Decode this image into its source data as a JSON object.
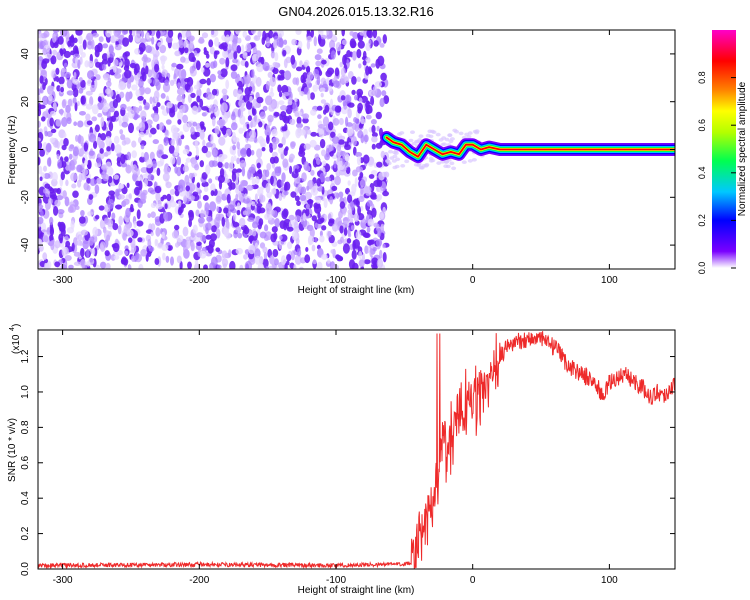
{
  "title": "GN04.2026.015.13.32.R16",
  "colors": {
    "colorbar": [
      "#ffffff",
      "#7a00ff",
      "#0000ff",
      "#00c8ff",
      "#00ff50",
      "#b4ff00",
      "#ffff00",
      "#ff8000",
      "#ff0000",
      "#ff00c8"
    ],
    "snr_line": "#ee2a2a",
    "spectrogram_noise": "#6a1ff0",
    "spectrogram_ridge": "#ff0000"
  },
  "chart_data": [
    {
      "type": "heatmap",
      "name": "spectrogram",
      "xlabel": "Height of straight line (km)",
      "ylabel": "Frequency (Hz)",
      "xlim": [
        -318,
        148
      ],
      "ylim": [
        -50,
        50
      ],
      "xticks": [
        -300,
        -200,
        -100,
        0,
        100
      ],
      "yticks": [
        -40,
        -20,
        0,
        20,
        40
      ],
      "noise_region_x": [
        -318,
        -63
      ],
      "ridge": {
        "x": [
          -63,
          -58,
          -52,
          -46,
          -40,
          -34,
          -28,
          -22,
          -16,
          -10,
          -5,
          0,
          6,
          12,
          20,
          30,
          148
        ],
        "y": [
          5,
          3,
          2,
          -1,
          -3,
          2,
          0,
          -2,
          -1,
          -2,
          2,
          2,
          0,
          1,
          0,
          0,
          0
        ]
      },
      "colorbar": {
        "label": "Normalized spectral amplitude",
        "range": [
          0,
          1
        ],
        "ticks": [
          "0.0",
          "0.2",
          "0.4",
          "0.6",
          "0.8"
        ]
      }
    },
    {
      "type": "line",
      "name": "snr",
      "xlabel": "Height of straight line (km)",
      "ylabel": "SNR (10 * v/v)",
      "yscale_label": "(x10",
      "yscale_exp": "4",
      "xlim": [
        -318,
        148
      ],
      "ylim": [
        0,
        1.35
      ],
      "xticks": [
        -300,
        -200,
        -100,
        0,
        100
      ],
      "yticks": [
        "0.0",
        "0.2",
        "0.4",
        "0.6",
        "0.8",
        "1.0",
        "1.2"
      ],
      "series": [
        {
          "x": [
            -318,
            -200,
            -100,
            -45,
            -40,
            -35,
            -32,
            -30,
            -27,
            -25,
            -23,
            -21,
            -20,
            -18,
            -15,
            -10,
            -5,
            0,
            5,
            10,
            15,
            20,
            25,
            30,
            40,
            50,
            60,
            70,
            80,
            90,
            95,
            100,
            110,
            115,
            120,
            125,
            130,
            135,
            140,
            148
          ],
          "y": [
            0.02,
            0.025,
            0.02,
            0.03,
            0.1,
            0.25,
            0.3,
            0.38,
            0.45,
            0.5,
            0.7,
            0.85,
            0.65,
            0.7,
            0.75,
            0.85,
            0.9,
            0.95,
            1.0,
            1.05,
            1.1,
            1.2,
            1.25,
            1.28,
            1.3,
            1.3,
            1.25,
            1.15,
            1.1,
            1.05,
            0.97,
            1.05,
            1.1,
            1.08,
            1.05,
            1.02,
            0.97,
            1.0,
            0.98,
            1.05
          ]
        }
      ]
    }
  ]
}
